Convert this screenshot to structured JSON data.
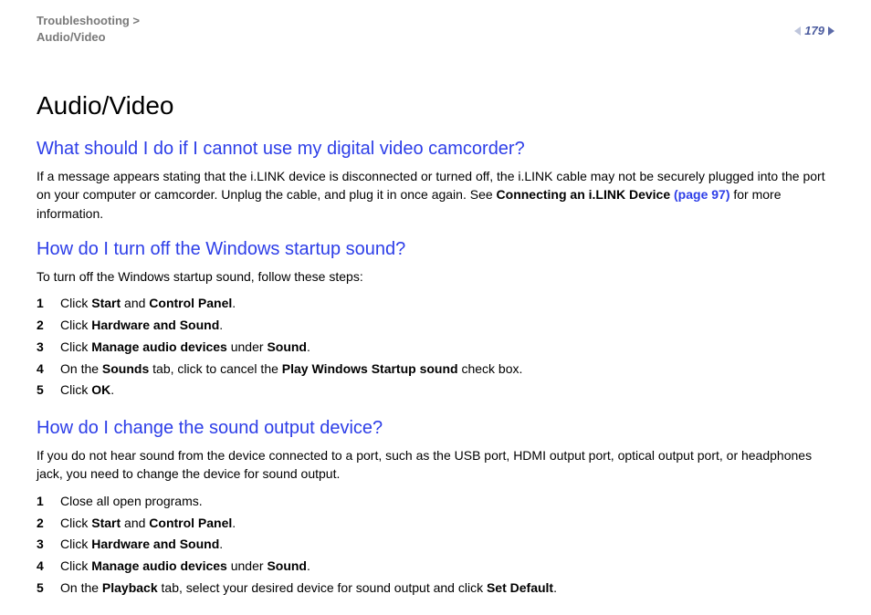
{
  "header": {
    "breadcrumb_line1": "Troubleshooting >",
    "breadcrumb_line2": "Audio/Video",
    "page_number": "179"
  },
  "title": "Audio/Video",
  "sections": [
    {
      "heading": "What should I do if I cannot use my digital video camcorder?",
      "intro_html": "If a message appears stating that the i.LINK device is disconnected or turned off, the i.LINK cable may not be securely plugged into the port on your computer or camcorder. Unplug the cable, and plug it in once again. See <span class='b'>Connecting an i.LINK Device</span> <span class='link' data-name='page-link' data-interactable='true'>(page 97)</span> for more information.",
      "steps": []
    },
    {
      "heading": "How do I turn off the Windows startup sound?",
      "intro_html": "To turn off the Windows startup sound, follow these steps:",
      "steps": [
        "Click <span class='b'>Start</span> and <span class='b'>Control Panel</span>.",
        "Click <span class='b'>Hardware and Sound</span>.",
        "Click <span class='b'>Manage audio devices</span> under <span class='b'>Sound</span>.",
        "On the <span class='b'>Sounds</span> tab, click to cancel the <span class='b'>Play Windows Startup sound</span> check box.",
        "Click <span class='b'>OK</span>."
      ]
    },
    {
      "heading": "How do I change the sound output device?",
      "intro_html": "If you do not hear sound from the device connected to a port, such as the USB port, HDMI output port, optical output port, or headphones jack, you need to change the device for sound output.",
      "steps": [
        "Close all open programs.",
        "Click <span class='b'>Start</span> and <span class='b'>Control Panel</span>.",
        "Click <span class='b'>Hardware and Sound</span>.",
        "Click <span class='b'>Manage audio devices</span> under <span class='b'>Sound</span>.",
        "On the <span class='b'>Playback</span> tab, select your desired device for sound output and click <span class='b'>Set Default</span>."
      ]
    }
  ],
  "colors": {
    "heading_blue": "#2d3ee8",
    "breadcrumb_gray": "#7a7a7a",
    "pagenum_blue": "#4b5b9e"
  }
}
